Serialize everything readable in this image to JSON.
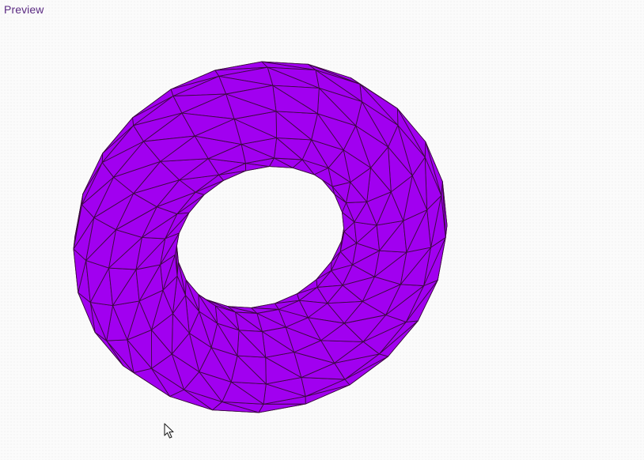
{
  "panel": {
    "label": "Preview"
  },
  "model": {
    "shape": "torus",
    "color": "#a100f0",
    "edge_color": "#3b0a3f",
    "background": "#fbfbfb",
    "render": "wireframe-over-solid"
  },
  "cursor": {
    "icon": "arrow-cursor-icon"
  }
}
